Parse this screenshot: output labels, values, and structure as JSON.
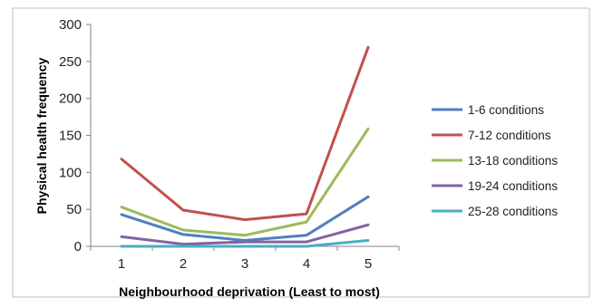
{
  "chart_data": {
    "type": "line",
    "title": "",
    "xlabel": "Neighbourhood deprivation (Least to most)",
    "ylabel": "Physical health frequency",
    "x": [
      "1",
      "2",
      "3",
      "4",
      "5"
    ],
    "ylim": [
      0,
      300
    ],
    "yticks": [
      "0",
      "50",
      "100",
      "150",
      "200",
      "250",
      "300"
    ],
    "grid": false,
    "legend_position": "right",
    "series": [
      {
        "name": "1-6 conditions",
        "color": "#4F7FBF",
        "values": [
          43,
          16,
          8,
          15,
          67
        ]
      },
      {
        "name": "7-12 conditions",
        "color": "#C0504D",
        "values": [
          118,
          49,
          36,
          44,
          269
        ]
      },
      {
        "name": "13-18 conditions",
        "color": "#9BBB59",
        "values": [
          53,
          22,
          15,
          33,
          159
        ]
      },
      {
        "name": "19-24 conditions",
        "color": "#8064A2",
        "values": [
          13,
          3,
          6,
          6,
          29
        ]
      },
      {
        "name": "25-28 conditions",
        "color": "#4BACC6",
        "values": [
          0,
          0,
          0,
          0,
          8
        ]
      }
    ]
  }
}
